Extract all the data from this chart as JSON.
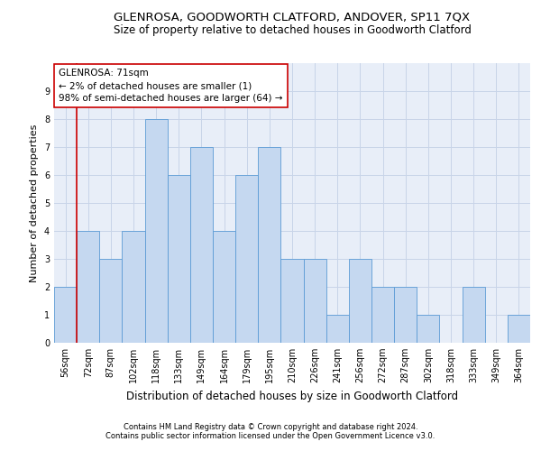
{
  "title": "GLENROSA, GOODWORTH CLATFORD, ANDOVER, SP11 7QX",
  "subtitle": "Size of property relative to detached houses in Goodworth Clatford",
  "xlabel": "Distribution of detached houses by size in Goodworth Clatford",
  "ylabel": "Number of detached properties",
  "categories": [
    "56sqm",
    "72sqm",
    "87sqm",
    "102sqm",
    "118sqm",
    "133sqm",
    "149sqm",
    "164sqm",
    "179sqm",
    "195sqm",
    "210sqm",
    "226sqm",
    "241sqm",
    "256sqm",
    "272sqm",
    "287sqm",
    "302sqm",
    "318sqm",
    "333sqm",
    "349sqm",
    "364sqm"
  ],
  "values": [
    2,
    4,
    3,
    4,
    8,
    6,
    7,
    4,
    6,
    7,
    3,
    3,
    1,
    3,
    2,
    2,
    1,
    0,
    2,
    0,
    1
  ],
  "bar_color": "#c5d8f0",
  "bar_edge_color": "#5b9bd5",
  "vline_x": 0.5,
  "vline_color": "#cc0000",
  "annotation_lines": [
    "GLENROSA: 71sqm",
    "← 2% of detached houses are smaller (1)",
    "98% of semi-detached houses are larger (64) →"
  ],
  "annotation_box_color": "#cc0000",
  "ylim": [
    0,
    10
  ],
  "yticks": [
    0,
    1,
    2,
    3,
    4,
    5,
    6,
    7,
    8,
    9,
    10
  ],
  "grid_color": "#c8d4e8",
  "bg_color": "#e8eef8",
  "footnote1": "Contains HM Land Registry data © Crown copyright and database right 2024.",
  "footnote2": "Contains public sector information licensed under the Open Government Licence v3.0.",
  "title_fontsize": 9.5,
  "subtitle_fontsize": 8.5,
  "xlabel_fontsize": 8.5,
  "ylabel_fontsize": 8,
  "tick_fontsize": 7,
  "annotation_fontsize": 7.5,
  "footnote_fontsize": 6
}
